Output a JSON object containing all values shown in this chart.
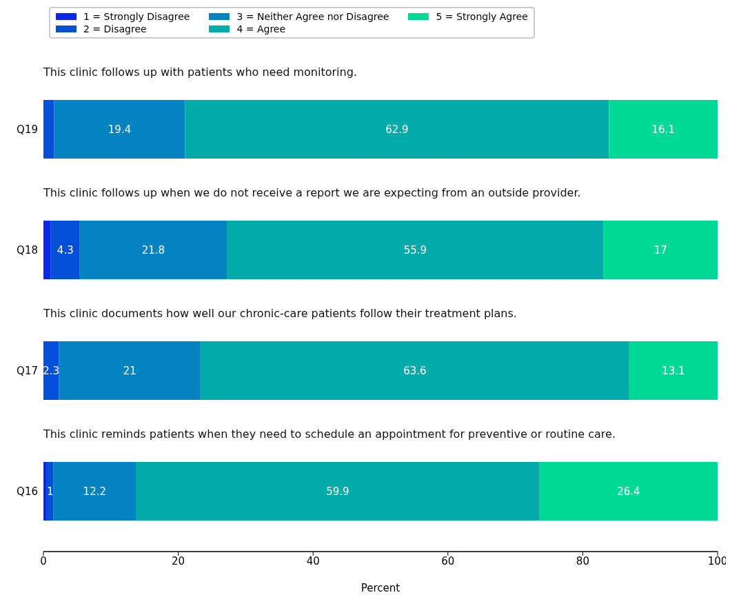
{
  "chart_data": {
    "type": "bar",
    "orientation": "horizontal",
    "stacked": true,
    "categories": [
      "Q19",
      "Q18",
      "Q17",
      "Q16"
    ],
    "series": [
      {
        "name": "1 =  Strongly Disagree",
        "color": "#0a28e6",
        "values": [
          null,
          1.1,
          null,
          0.5
        ],
        "value_labels": [
          null,
          null,
          null,
          null
        ]
      },
      {
        "name": "2 = Disagree",
        "color": "#0350d6",
        "values": [
          1.6,
          4.3,
          2.3,
          1
        ],
        "value_labels": [
          null,
          "4.3",
          "2.3",
          "1"
        ]
      },
      {
        "name": "3 = Neither Agree nor Disagree",
        "color": "#0582c0",
        "values": [
          19.4,
          21.8,
          21,
          12.2
        ],
        "value_labels": [
          "19.4",
          "21.8",
          "21",
          "12.2"
        ]
      },
      {
        "name": "4 = Agree",
        "color": "#02aaaa",
        "values": [
          62.9,
          55.9,
          63.6,
          59.9
        ],
        "value_labels": [
          "62.9",
          "55.9",
          "63.6",
          "59.9"
        ]
      },
      {
        "name": "5 = Strongly Agree",
        "color": "#00d994",
        "values": [
          16.1,
          17,
          13.1,
          26.4
        ],
        "value_labels": [
          "16.1",
          "17",
          "13.1",
          "26.4"
        ]
      }
    ],
    "xlim": [
      0,
      100
    ],
    "xticks": [
      0,
      20,
      40,
      60,
      80,
      100
    ],
    "xlabel": "Percent",
    "grid": false,
    "legend": "top left",
    "annotations": [
      "This clinic follows up with patients who need monitoring.",
      "This clinic follows up when we do not receive a report we are expecting from an outside provider.",
      "This clinic documents how well our chronic-care patients follow their treatment plans.",
      "This clinic reminds patients when they need to schedule an appointment for preventive or routine care."
    ]
  }
}
